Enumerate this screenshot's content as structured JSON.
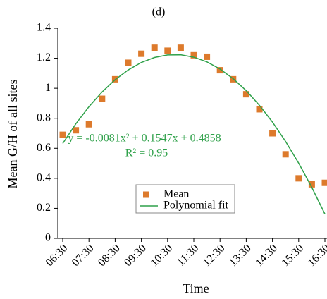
{
  "chart_data": {
    "type": "scatter",
    "title": "(d)",
    "x_label": "Time",
    "y_label": "Mean G/H of all sites",
    "categories": [
      "06:30",
      null,
      "07:30",
      null,
      "08:30",
      null,
      "09:30",
      null,
      "10:30",
      null,
      "11:30",
      null,
      "12:30",
      null,
      "13:30",
      null,
      "14:30",
      null,
      "15:30",
      null,
      "16:30"
    ],
    "series": [
      {
        "name": "Mean",
        "type": "scatter",
        "color": "#dd7a2c",
        "values": [
          0.69,
          0.72,
          0.76,
          0.93,
          1.06,
          1.17,
          1.23,
          1.27,
          1.25,
          1.27,
          1.22,
          1.21,
          1.12,
          1.06,
          0.96,
          0.86,
          0.7,
          0.56,
          0.4,
          0.36,
          0.37
        ]
      },
      {
        "name": "Polynomial fit",
        "type": "line",
        "color": "#2fa14a",
        "values": [
          0.632,
          0.763,
          0.877,
          0.975,
          1.057,
          1.122,
          1.172,
          1.205,
          1.222,
          1.223,
          1.207,
          1.176,
          1.128,
          1.064,
          0.984,
          0.887,
          0.775,
          0.646,
          0.501,
          0.34,
          0.162
        ]
      }
    ],
    "annotations": [
      "y = -0.0081x² + 0.1547x + 0.4858",
      "R² = 0.95"
    ],
    "ylim": [
      0,
      1.4
    ],
    "yticks": [
      0,
      0.2,
      0.4,
      0.6,
      0.8,
      1,
      1.2,
      1.4
    ],
    "grid": false,
    "legend": "lower center"
  }
}
